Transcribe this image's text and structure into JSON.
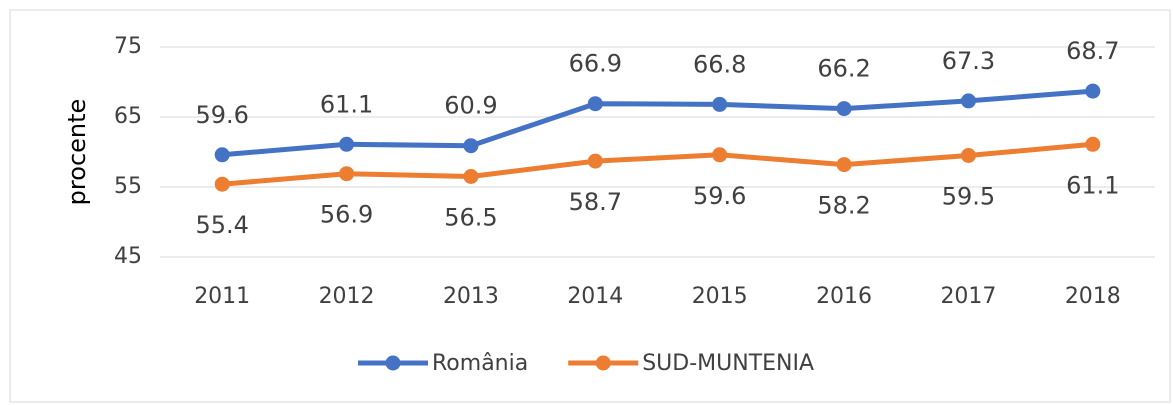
{
  "chart_data": {
    "type": "line",
    "y_label": "procente",
    "categories": [
      "2011",
      "2012",
      "2013",
      "2014",
      "2015",
      "2016",
      "2017",
      "2018"
    ],
    "series": [
      {
        "name": "România",
        "color": "#4472c4",
        "values": [
          59.6,
          61.1,
          60.9,
          66.9,
          66.8,
          66.2,
          67.3,
          68.7
        ]
      },
      {
        "name": "SUD-MUNTENIA",
        "color": "#ed7d31",
        "values": [
          55.4,
          56.9,
          56.5,
          58.7,
          59.6,
          58.2,
          59.5,
          61.1
        ]
      }
    ],
    "ylim": [
      45,
      75
    ],
    "yticks": [
      45,
      55,
      65,
      75
    ],
    "grid": true,
    "legend": "bottom"
  }
}
